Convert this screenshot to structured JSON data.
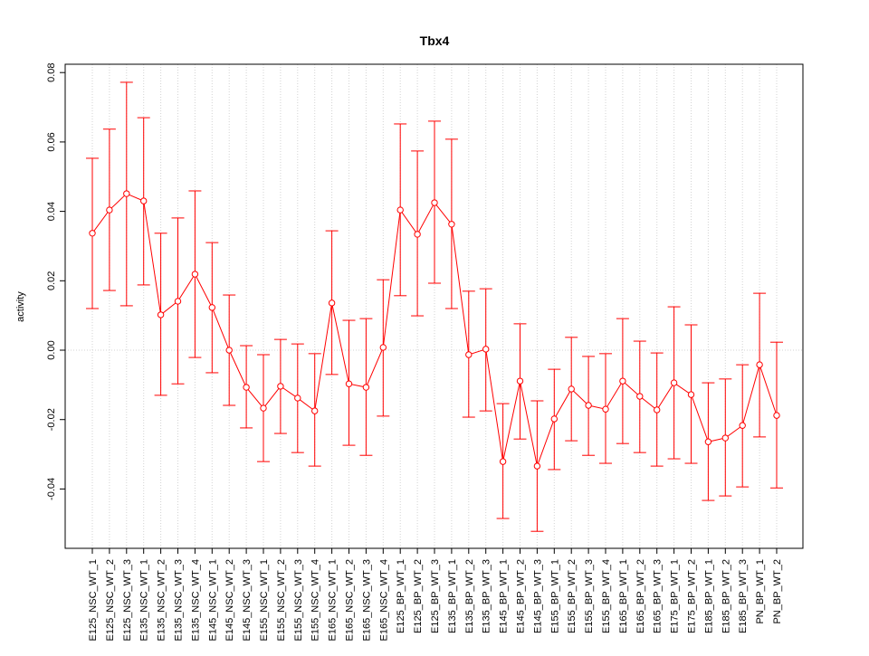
{
  "chart_data": {
    "type": "line",
    "title": "Tbx4",
    "xlabel": "",
    "ylabel": "activity",
    "ylim": [
      -0.0571,
      0.0824
    ],
    "yticks": [
      -0.04,
      -0.02,
      0.0,
      0.02,
      0.04,
      0.06,
      0.08
    ],
    "ytick_labels": [
      "-0.04",
      "-0.02",
      "0.00",
      "0.02",
      "0.04",
      "0.06",
      "0.08"
    ],
    "grid": "dotted vertical at each category, dotted horizontal at 0",
    "color": "#ff0000",
    "categories": [
      "E125_NSC_WT_1",
      "E125_NSC_WT_2",
      "E125_NSC_WT_3",
      "E135_NSC_WT_1",
      "E135_NSC_WT_2",
      "E135_NSC_WT_3",
      "E135_NSC_WT_4",
      "E145_NSC_WT_1",
      "E145_NSC_WT_2",
      "E145_NSC_WT_3",
      "E155_NSC_WT_1",
      "E155_NSC_WT_2",
      "E155_NSC_WT_3",
      "E155_NSC_WT_4",
      "E165_NSC_WT_1",
      "E165_NSC_WT_2",
      "E165_NSC_WT_3",
      "E165_NSC_WT_4",
      "E125_BP_WT_1",
      "E125_BP_WT_2",
      "E125_BP_WT_3",
      "E135_BP_WT_1",
      "E135_BP_WT_2",
      "E135_BP_WT_3",
      "E145_BP_WT_1",
      "E145_BP_WT_2",
      "E145_BP_WT_3",
      "E155_BP_WT_1",
      "E155_BP_WT_2",
      "E155_BP_WT_3",
      "E155_BP_WT_4",
      "E165_BP_WT_1",
      "E165_BP_WT_2",
      "E165_BP_WT_3",
      "E175_BP_WT_1",
      "E175_BP_WT_2",
      "E185_BP_WT_1",
      "E185_BP_WT_2",
      "E185_BP_WT_3",
      "PN_BP_WT_1",
      "PN_BP_WT_2"
    ],
    "values": [
      0.0337,
      0.0404,
      0.0451,
      0.043,
      0.0102,
      0.0141,
      0.0219,
      0.0123,
      0.0,
      -0.0107,
      -0.0167,
      -0.0104,
      -0.0138,
      -0.0175,
      0.0136,
      -0.0097,
      -0.0107,
      0.0008,
      0.0404,
      0.0334,
      0.0425,
      0.0363,
      -0.0013,
      0.0003,
      -0.0321,
      -0.0089,
      -0.0334,
      -0.0198,
      -0.0112,
      -0.0159,
      -0.017,
      -0.0089,
      -0.0133,
      -0.0172,
      -0.0094,
      -0.0128,
      -0.0264,
      -0.0253,
      -0.0217,
      -0.0042,
      -0.0188
    ],
    "upper": [
      0.0553,
      0.0637,
      0.0772,
      0.067,
      0.0337,
      0.0381,
      0.0459,
      0.031,
      0.0159,
      0.0013,
      -0.0013,
      0.0031,
      0.0018,
      -0.001,
      0.0344,
      0.0086,
      0.0091,
      0.0203,
      0.0652,
      0.0574,
      0.066,
      0.0608,
      0.017,
      0.0177,
      -0.0154,
      0.0076,
      -0.0146,
      -0.0055,
      0.0037,
      -0.0018,
      -0.001,
      0.0091,
      0.0026,
      -0.0008,
      0.0125,
      0.0073,
      -0.0094,
      -0.0083,
      -0.0042,
      0.0164,
      0.0023
    ],
    "lower": [
      0.012,
      0.0172,
      0.0128,
      0.0188,
      -0.013,
      -0.0097,
      -0.0021,
      -0.0065,
      -0.0159,
      -0.0224,
      -0.0321,
      -0.024,
      -0.0295,
      -0.0334,
      -0.007,
      -0.0274,
      -0.0303,
      -0.019,
      0.0157,
      0.0099,
      0.0193,
      0.012,
      -0.0193,
      -0.0175,
      -0.0485,
      -0.0256,
      -0.0522,
      -0.0344,
      -0.0261,
      -0.0303,
      -0.0326,
      -0.0269,
      -0.0295,
      -0.0334,
      -0.0313,
      -0.0326,
      -0.0433,
      -0.042,
      -0.0394,
      -0.025,
      -0.0397
    ]
  }
}
